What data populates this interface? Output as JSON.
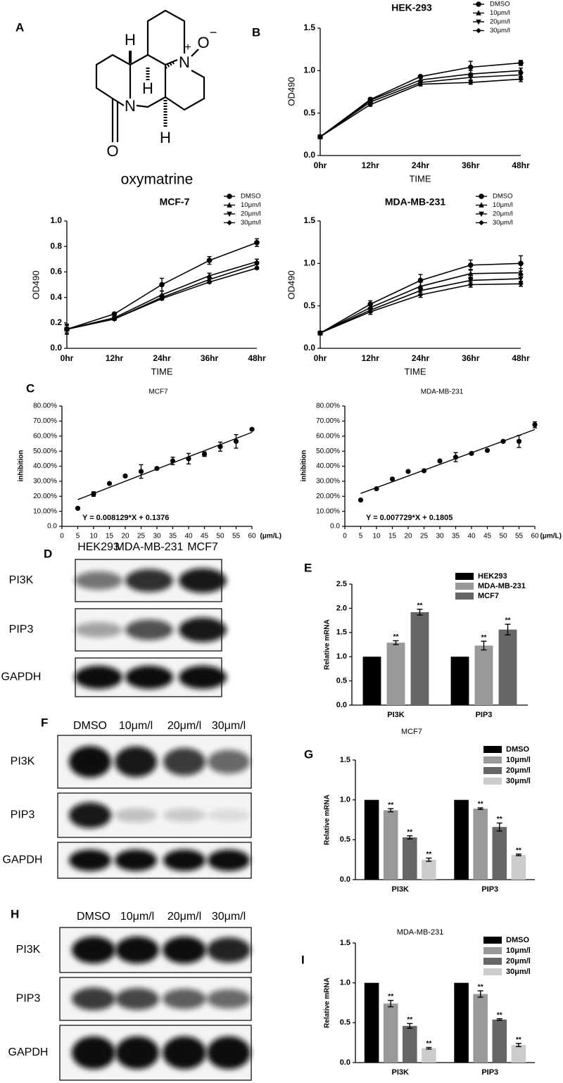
{
  "panel_labels": [
    "A",
    "B",
    "C",
    "D",
    "E",
    "F",
    "G",
    "H",
    "I"
  ],
  "structure": {
    "name": "oxymatrine",
    "atoms": [
      "H",
      "N",
      "O",
      "H",
      "N",
      "H",
      "O"
    ],
    "charges": [
      "+",
      "−"
    ]
  },
  "blots": [
    {
      "lanes": [
        "HEK293",
        "MDA-MB-231",
        "MCF7"
      ],
      "rows": [
        "PI3K",
        "PIP3",
        "GAPDH"
      ]
    },
    {
      "lanes": [
        "DMSO",
        "10μm/l",
        "20μm/l",
        "30μm/l"
      ],
      "rows": [
        "PI3K",
        "PIP3",
        "GAPDH"
      ]
    },
    {
      "lanes": [
        "DMSO",
        "10μm/l",
        "20μm/l",
        "30μm/l"
      ],
      "rows": [
        "PI3K",
        "PIP3",
        "GAPDH"
      ]
    }
  ],
  "chart_data": [
    {
      "type": "line",
      "title": "HEK-293",
      "categories": [
        "0hr",
        "12hr",
        "24hr",
        "36hr",
        "48hr"
      ],
      "x_label": "TIME",
      "y_label": "OD490",
      "ylim": [
        0,
        1.5
      ],
      "yticks": [
        {
          "value": 0,
          "label": "0.0"
        },
        0.5,
        {
          "value": 1,
          "label": "1.0"
        },
        1.5
      ],
      "series": [
        {
          "name": "DMSO",
          "color": "#000000",
          "marker": "circle",
          "values": [
            0.22,
            0.66,
            0.93,
            1.04,
            1.09
          ],
          "errors": [
            0.01,
            0.02,
            0.01,
            0.07,
            0.03
          ]
        },
        {
          "name": "10μm/l",
          "color": "#000000",
          "marker": "triangle-up",
          "values": [
            0.22,
            0.65,
            0.89,
            0.96,
            1.0
          ],
          "errors": [
            0.01,
            0.02,
            0.02,
            0.04,
            0.03
          ]
        },
        {
          "name": "20μm/l",
          "color": "#000000",
          "marker": "triangle-down",
          "values": [
            0.22,
            0.63,
            0.86,
            0.92,
            0.95
          ],
          "errors": [
            0.01,
            0.02,
            0.02,
            0.03,
            0.03
          ]
        },
        {
          "name": "30μm/l",
          "color": "#000000",
          "marker": "diamond",
          "values": [
            0.22,
            0.6,
            0.84,
            0.86,
            0.9
          ],
          "errors": [
            0.01,
            0.02,
            0.02,
            0.02,
            0.03
          ]
        }
      ]
    },
    {
      "type": "line",
      "title": "MCF-7",
      "categories": [
        "0hr",
        "12hr",
        "24hr",
        "36hr",
        "48hr"
      ],
      "x_label": "TIME",
      "y_label": "OD490",
      "ylim": [
        0,
        1
      ],
      "yticks": [
        {
          "value": 0,
          "label": "0.0"
        },
        0.2,
        0.4,
        0.6,
        0.8,
        {
          "value": 1,
          "label": "1.0"
        }
      ],
      "series": [
        {
          "name": "DMSO",
          "color": "#000000",
          "marker": "circle",
          "values": [
            0.15,
            0.27,
            0.5,
            0.69,
            0.83
          ],
          "errors": [
            0.03,
            0.01,
            0.05,
            0.03,
            0.03
          ]
        },
        {
          "name": "10μm/l",
          "color": "#000000",
          "marker": "triangle-up",
          "values": [
            0.15,
            0.24,
            0.42,
            0.57,
            0.68
          ],
          "errors": [
            0.03,
            0.01,
            0.03,
            0.02,
            0.02
          ]
        },
        {
          "name": "20μm/l",
          "color": "#000000",
          "marker": "triangle-down",
          "values": [
            0.15,
            0.23,
            0.4,
            0.54,
            0.66
          ],
          "errors": [
            0.03,
            0.01,
            0.02,
            0.02,
            0.02
          ]
        },
        {
          "name": "30μm/l",
          "color": "#000000",
          "marker": "diamond",
          "values": [
            0.15,
            0.23,
            0.39,
            0.52,
            0.63
          ],
          "errors": [
            0.04,
            0.01,
            0.01,
            0.01,
            0.01
          ]
        }
      ]
    },
    {
      "type": "line",
      "title": "MDA-MB-231",
      "categories": [
        "0hr",
        "12hr",
        "24hr",
        "36hr",
        "48hr"
      ],
      "x_label": "TIME",
      "y_label": "OD490",
      "ylim": [
        0,
        1.5
      ],
      "yticks": [
        {
          "value": 0,
          "label": "0.0"
        },
        0.5,
        {
          "value": 1,
          "label": "1.0"
        },
        1.5
      ],
      "series": [
        {
          "name": "DMSO",
          "color": "#000000",
          "marker": "circle",
          "values": [
            0.18,
            0.52,
            0.8,
            0.98,
            1.0
          ],
          "errors": [
            0.01,
            0.04,
            0.07,
            0.06,
            0.09
          ]
        },
        {
          "name": "10μm/l",
          "color": "#000000",
          "marker": "triangle-up",
          "values": [
            0.18,
            0.48,
            0.73,
            0.88,
            0.89
          ],
          "errors": [
            0.01,
            0.04,
            0.05,
            0.05,
            0.05
          ]
        },
        {
          "name": "20μm/l",
          "color": "#000000",
          "marker": "triangle-down",
          "values": [
            0.18,
            0.45,
            0.68,
            0.8,
            0.82
          ],
          "errors": [
            0.01,
            0.03,
            0.04,
            0.04,
            0.04
          ]
        },
        {
          "name": "30μm/l",
          "color": "#000000",
          "marker": "diamond",
          "values": [
            0.18,
            0.43,
            0.63,
            0.75,
            0.76
          ],
          "errors": [
            0.01,
            0.03,
            0.03,
            0.03,
            0.03
          ]
        }
      ]
    },
    {
      "type": "scatter",
      "title": "MCF7",
      "x_label": "(μm/L)",
      "y_label": "inhibition",
      "color": "#000000",
      "x": [
        5,
        10,
        15,
        20,
        25,
        30,
        35,
        40,
        45,
        50,
        55,
        60
      ],
      "values": [
        12,
        21.5,
        28.5,
        33.5,
        36.5,
        38.5,
        43.5,
        45,
        48,
        53,
        56.5,
        64.5
      ],
      "errors": [
        0,
        1.5,
        0,
        0,
        4.5,
        0,
        2.5,
        3.5,
        1.5,
        3,
        4.5,
        0
      ],
      "xlim": [
        0,
        60
      ],
      "xticks": [
        0,
        5,
        10,
        15,
        20,
        25,
        30,
        35,
        40,
        45,
        50,
        55,
        60
      ],
      "ylim": [
        0,
        80
      ],
      "yticks": [
        {
          "value": 0,
          "label": "0.0"
        },
        {
          "value": 10,
          "label": "10.00%"
        },
        {
          "value": 20,
          "label": "20.00%"
        },
        {
          "value": 30,
          "label": "30.00%"
        },
        {
          "value": 40,
          "label": "40.00%"
        },
        {
          "value": 50,
          "label": "50.00%"
        },
        {
          "value": 60,
          "label": "60.00%"
        },
        {
          "value": 70,
          "label": "70.00%"
        },
        {
          "value": 80,
          "label": "80.00%"
        }
      ],
      "annotation": "Y = 0.008129*X + 0.1376",
      "fit": {
        "x": [
          5,
          60
        ],
        "values": [
          17.8,
          62.5
        ]
      }
    },
    {
      "type": "scatter",
      "title": "MDA-MB-231",
      "x_label": "(μm/L)",
      "y_label": "inhibition",
      "color": "#000000",
      "x": [
        5,
        10,
        15,
        20,
        25,
        30,
        35,
        40,
        45,
        50,
        55,
        60
      ],
      "values": [
        17.5,
        25,
        31.5,
        36.5,
        37,
        43.5,
        46,
        48.5,
        50.5,
        56.5,
        56.5,
        67.5
      ],
      "errors": [
        0,
        0,
        0,
        0,
        0,
        0,
        3,
        0,
        0,
        0,
        4,
        2
      ],
      "xlim": [
        0,
        60
      ],
      "xticks": [
        0,
        5,
        10,
        15,
        20,
        25,
        30,
        35,
        40,
        45,
        50,
        55,
        60
      ],
      "ylim": [
        0,
        80
      ],
      "yticks": [
        {
          "value": 0,
          "label": "0.0"
        },
        {
          "value": 10,
          "label": "10.00%"
        },
        {
          "value": 20,
          "label": "20.00%"
        },
        {
          "value": 30,
          "label": "30.00%"
        },
        {
          "value": 40,
          "label": "40.00%"
        },
        {
          "value": 50,
          "label": "50.00%"
        },
        {
          "value": 60,
          "label": "60.00%"
        },
        {
          "value": 70,
          "label": "70.00%"
        },
        {
          "value": 80,
          "label": "80.00%"
        }
      ],
      "annotation": "Y = 0.007729*X + 0.1805",
      "fit": {
        "x": [
          5,
          60
        ],
        "values": [
          21.9,
          64.4
        ]
      }
    },
    {
      "type": "bar",
      "categories": [
        "PI3K",
        "PIP3"
      ],
      "y_label": "Relative mRNA",
      "ylim": [
        0,
        2.5
      ],
      "yticks": [
        {
          "value": 0,
          "label": "0.0"
        },
        0.5,
        {
          "value": 1,
          "label": "1.0"
        },
        1.5,
        {
          "value": 2,
          "label": "2.0"
        },
        2.5
      ],
      "series": [
        {
          "name": "HEK293",
          "color": "#000000",
          "values": [
            1,
            1
          ]
        },
        {
          "name": "MDA-MB-231",
          "color": "#999999",
          "values": [
            1.29,
            1.23
          ],
          "errors": [
            0.04,
            0.09
          ],
          "significance": [
            "**",
            "**"
          ]
        },
        {
          "name": "MCF7",
          "color": "#666666",
          "values": [
            1.92,
            1.56
          ],
          "errors": [
            0.06,
            0.11
          ],
          "significance": [
            "**",
            "**"
          ]
        }
      ]
    },
    {
      "type": "bar",
      "title": "MCF7",
      "categories": [
        "PI3K",
        "PIP3"
      ],
      "y_label": "Relative mRNA",
      "ylim": [
        0,
        1.5
      ],
      "yticks": [
        {
          "value": 0,
          "label": "0.0"
        },
        0.5,
        {
          "value": 1,
          "label": "1.0"
        },
        1.5
      ],
      "series": [
        {
          "name": "DMSO",
          "color": "#000000",
          "values": [
            1,
            1
          ]
        },
        {
          "name": "10μm/l",
          "color": "#999999",
          "values": [
            0.87,
            0.89
          ],
          "errors": [
            0.02,
            0.01
          ],
          "significance": [
            "**",
            "**"
          ]
        },
        {
          "name": "20μm/l",
          "color": "#666666",
          "values": [
            0.53,
            0.66
          ],
          "errors": [
            0.02,
            0.05
          ],
          "significance": [
            "**",
            "**"
          ]
        },
        {
          "name": "30μm/l",
          "color": "#cccccc",
          "values": [
            0.25,
            0.31
          ],
          "errors": [
            0.02,
            0.01
          ],
          "significance": [
            "**",
            "**"
          ]
        }
      ]
    },
    {
      "type": "bar",
      "title": "MDA-MB-231",
      "categories": [
        "PI3K",
        "PIP3"
      ],
      "y_label": "Relative mRNA",
      "ylim": [
        0,
        1.5
      ],
      "yticks": [
        {
          "value": 0,
          "label": "0.0"
        },
        0.5,
        {
          "value": 1,
          "label": "1.0"
        },
        1.5
      ],
      "series": [
        {
          "name": "DMSO",
          "color": "#000000",
          "values": [
            1,
            1
          ]
        },
        {
          "name": "10μm/l",
          "color": "#999999",
          "values": [
            0.74,
            0.86
          ],
          "errors": [
            0.04,
            0.04
          ],
          "significance": [
            "**",
            "**"
          ]
        },
        {
          "name": "20μm/l",
          "color": "#666666",
          "values": [
            0.46,
            0.54
          ],
          "errors": [
            0.03,
            0.01
          ],
          "significance": [
            "**",
            "**"
          ]
        },
        {
          "name": "30μm/l",
          "color": "#cccccc",
          "values": [
            0.18,
            0.22
          ],
          "errors": [
            0.01,
            0.02
          ],
          "significance": [
            "**",
            "**"
          ]
        }
      ]
    }
  ]
}
